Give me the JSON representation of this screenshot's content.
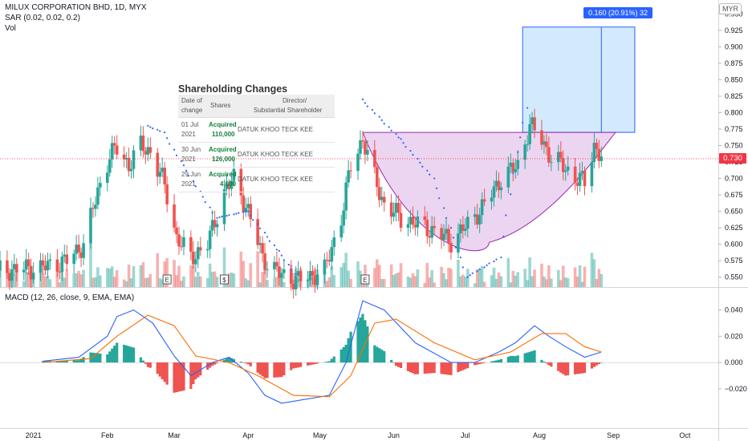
{
  "header": {
    "title": "MILUX CORPORATION BHD, 1D, MYX",
    "sar": "SAR (0.02, 0.02, 0.2)",
    "vol": "Vol",
    "currency": "MYR"
  },
  "measure_label": "0.160 (20.91%) 32",
  "last_price": "0.730",
  "macd_title": "MACD (12, 26, close, 9, EMA, EMA)",
  "earnings_marker": "E",
  "dividend_marker": "$",
  "shareholding": {
    "title": "Shareholding Changes",
    "col_date": [
      "Date of",
      "change"
    ],
    "col_shares": "Shares",
    "col_director": [
      "Director/",
      "Substantial Shareholder"
    ],
    "rows": [
      {
        "date1": "01 Jul",
        "date2": "2021",
        "action": "Acquired",
        "shares": "110,000",
        "name": "DATUK KHOO TECK KEE"
      },
      {
        "date1": "30 Jun",
        "date2": "2021",
        "action": "Acquired",
        "shares": "126,000",
        "name": "DATUK KHOO TECK KEE"
      },
      {
        "date1": "29 Jun",
        "date2": "2021",
        "action": "Acquired",
        "shares": "4,000",
        "name": "DATUK KHOO TECK KEE"
      }
    ]
  },
  "chart_data": [
    {
      "type": "candlestick",
      "title": "MILUX CORPORATION BHD, 1D, MYX",
      "ylim": [
        0.535,
        0.965
      ],
      "y_ticks": [
        "0.950",
        "0.925",
        "0.900",
        "0.875",
        "0.850",
        "0.825",
        "0.800",
        "0.775",
        "0.750",
        "0.725",
        "0.700",
        "0.675",
        "0.650",
        "0.625",
        "0.600",
        "0.575",
        "0.550"
      ],
      "x_ticks": [
        "2021",
        "Feb",
        "Mar",
        "Apr",
        "May",
        "Jun",
        "Jul",
        "Aug",
        "Sep",
        "Oct"
      ],
      "close_path": [
        [
          "2020-12-18",
          0.56
        ],
        [
          "2021-01-05",
          0.565
        ],
        [
          "2021-01-15",
          0.575
        ],
        [
          "2021-01-22",
          0.6
        ],
        [
          "2021-01-28",
          0.68
        ],
        [
          "2021-02-02",
          0.735
        ],
        [
          "2021-02-05",
          0.745
        ],
        [
          "2021-02-10",
          0.72
        ],
        [
          "2021-02-15",
          0.75
        ],
        [
          "2021-02-19",
          0.74
        ],
        [
          "2021-02-25",
          0.69
        ],
        [
          "2021-03-02",
          0.61
        ],
        [
          "2021-03-08",
          0.58
        ],
        [
          "2021-03-15",
          0.6
        ],
        [
          "2021-03-22",
          0.68
        ],
        [
          "2021-03-26",
          0.7
        ],
        [
          "2021-04-01",
          0.65
        ],
        [
          "2021-04-07",
          0.58
        ],
        [
          "2021-04-14",
          0.555
        ],
        [
          "2021-04-22",
          0.545
        ],
        [
          "2021-05-03",
          0.56
        ],
        [
          "2021-05-10",
          0.64
        ],
        [
          "2021-05-14",
          0.72
        ],
        [
          "2021-05-19",
          0.76
        ],
        [
          "2021-05-24",
          0.7
        ],
        [
          "2021-05-28",
          0.66
        ],
        [
          "2021-06-04",
          0.64
        ],
        [
          "2021-06-11",
          0.63
        ],
        [
          "2021-06-18",
          0.62
        ],
        [
          "2021-06-25",
          0.605
        ],
        [
          "2021-07-02",
          0.63
        ],
        [
          "2021-07-09",
          0.66
        ],
        [
          "2021-07-16",
          0.7
        ],
        [
          "2021-07-23",
          0.72
        ],
        [
          "2021-07-28",
          0.78
        ],
        [
          "2021-08-02",
          0.76
        ],
        [
          "2021-08-06",
          0.73
        ],
        [
          "2021-08-11",
          0.72
        ],
        [
          "2021-08-16",
          0.7
        ],
        [
          "2021-08-20",
          0.695
        ],
        [
          "2021-08-24",
          0.75
        ],
        [
          "2021-08-27",
          0.73
        ]
      ],
      "sar_path": [
        [
          "2021-02-18",
          0.78
        ],
        [
          "2021-02-25",
          0.77
        ],
        [
          "2021-03-05",
          0.72
        ],
        [
          "2021-03-12",
          0.68
        ],
        [
          "2021-03-19",
          0.64
        ],
        [
          "2021-04-01",
          0.65
        ],
        [
          "2021-04-14",
          0.59
        ],
        [
          "2021-04-22",
          0.55
        ],
        [
          "2021-05-19",
          0.82
        ],
        [
          "2021-06-04",
          0.76
        ],
        [
          "2021-06-18",
          0.7
        ],
        [
          "2021-07-02",
          0.55
        ],
        [
          "2021-07-16",
          0.58
        ],
        [
          "2021-07-23",
          0.74
        ],
        [
          "2021-07-28",
          0.82
        ],
        [
          "2021-08-26",
          0.77
        ]
      ],
      "annotations": {
        "cup_top": 0.77,
        "cup_bottom": 0.603,
        "measure_from": 0.77,
        "measure_to": 0.93,
        "measure_label": "0.160 (20.91%) 32",
        "last_price": 0.73
      }
    },
    {
      "type": "macd",
      "title": "MACD (12, 26, close, 9, EMA, EMA)",
      "ylim": [
        -0.05,
        0.055
      ],
      "y_ticks": [
        "0.040",
        "0.020",
        "0.000",
        "−0.020"
      ],
      "macd_path": [
        [
          "2021-01-05",
          0.001
        ],
        [
          "2021-01-20",
          0.004
        ],
        [
          "2021-02-01",
          0.02
        ],
        [
          "2021-02-05",
          0.035
        ],
        [
          "2021-02-12",
          0.04
        ],
        [
          "2021-02-20",
          0.03
        ],
        [
          "2021-03-01",
          0.005
        ],
        [
          "2021-03-08",
          -0.01
        ],
        [
          "2021-03-17",
          0.0
        ],
        [
          "2021-03-24",
          0.004
        ],
        [
          "2021-04-01",
          -0.008
        ],
        [
          "2021-04-08",
          -0.025
        ],
        [
          "2021-04-15",
          -0.031
        ],
        [
          "2021-04-25",
          -0.028
        ],
        [
          "2021-05-05",
          -0.025
        ],
        [
          "2021-05-12",
          0.0
        ],
        [
          "2021-05-19",
          0.047
        ],
        [
          "2021-05-28",
          0.04
        ],
        [
          "2021-06-10",
          0.015
        ],
        [
          "2021-06-25",
          0.0
        ],
        [
          "2021-07-05",
          0.0
        ],
        [
          "2021-07-15",
          0.008
        ],
        [
          "2021-07-22",
          0.015
        ],
        [
          "2021-07-30",
          0.028
        ],
        [
          "2021-08-05",
          0.02
        ],
        [
          "2021-08-12",
          0.012
        ],
        [
          "2021-08-20",
          0.004
        ],
        [
          "2021-08-27",
          0.008
        ]
      ],
      "signal_path": [
        [
          "2021-01-05",
          0.0
        ],
        [
          "2021-01-25",
          0.003
        ],
        [
          "2021-02-05",
          0.02
        ],
        [
          "2021-02-18",
          0.036
        ],
        [
          "2021-03-01",
          0.028
        ],
        [
          "2021-03-10",
          0.005
        ],
        [
          "2021-03-24",
          0.0
        ],
        [
          "2021-04-05",
          -0.01
        ],
        [
          "2021-04-20",
          -0.025
        ],
        [
          "2021-05-05",
          -0.026
        ],
        [
          "2021-05-14",
          -0.01
        ],
        [
          "2021-05-24",
          0.03
        ],
        [
          "2021-06-02",
          0.033
        ],
        [
          "2021-06-18",
          0.015
        ],
        [
          "2021-07-05",
          0.002
        ],
        [
          "2021-07-20",
          0.008
        ],
        [
          "2021-08-02",
          0.022
        ],
        [
          "2021-08-12",
          0.022
        ],
        [
          "2021-08-20",
          0.012
        ],
        [
          "2021-08-27",
          0.008
        ]
      ]
    }
  ]
}
